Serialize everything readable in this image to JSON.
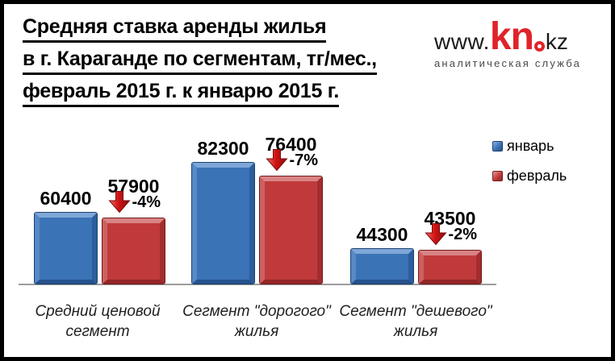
{
  "title": {
    "lines": [
      "Средняя ставка аренды жилья",
      "в г. Караганде по сегментам, тг/мес.,",
      "февраль 2015 г. к январю 2015 г."
    ]
  },
  "logo": {
    "www": "www.",
    "brand": "kn",
    "tld": "kz",
    "tagline": "аналитическая служба",
    "brand_color": "#e0232a"
  },
  "colors": {
    "bar_january": "#3b73b7",
    "bar_february": "#c13a3b",
    "arrow_red": "#d01313",
    "axis_line": "#9c9c9c",
    "frame_border": "#000000",
    "logo_red": "#e0232a"
  },
  "chart_data": {
    "type": "bar",
    "title": "Средняя ставка аренды жилья в г. Караганде по сегментам, тг/мес., февраль 2015 г. к январю 2015 г.",
    "categories": [
      "Средний ценовой сегмент",
      "Сегмент \"дорогого\" жилья",
      "Сегмент \"дешевого\" жилья"
    ],
    "categories_wrapped": [
      [
        "Средний ценовой",
        "сегмент"
      ],
      [
        "Сегмент \"дорогого\"",
        "жилья"
      ],
      [
        "Сегмент \"дешевого\"",
        "жилья"
      ]
    ],
    "series": [
      {
        "name": "январь",
        "color": "#3b73b7",
        "values": [
          60400,
          82300,
          44300
        ]
      },
      {
        "name": "февраль",
        "color": "#c13a3b",
        "values": [
          57900,
          76400,
          43500
        ]
      }
    ],
    "change_labels": [
      "-4%",
      "-7%",
      "-2%"
    ],
    "value_labels_shown": true,
    "ylabel": "тг/мес.",
    "axis_hidden_min": 29000,
    "grid": false,
    "legend_position": "right"
  }
}
